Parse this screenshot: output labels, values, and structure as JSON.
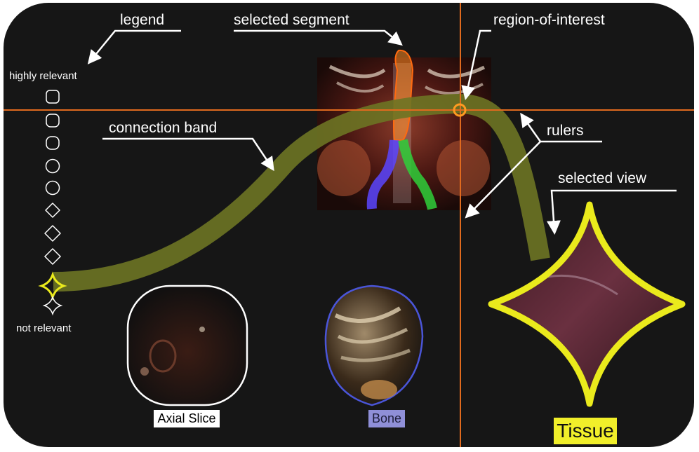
{
  "annotations": {
    "legend": "legend",
    "selected_segment": "selected segment",
    "region_of_interest": "region-of-interest",
    "connection_band": "connection band",
    "rulers": "rulers",
    "selected_view": "selected view"
  },
  "legend_scale": {
    "top_label": "highly relevant",
    "bottom_label": "not relevant",
    "glyph_count": 10,
    "highlighted_index": 8
  },
  "views": {
    "axial": "Axial Slice",
    "bone": "Bone",
    "tissue": "Tissue"
  },
  "colors": {
    "background": "#161616",
    "ruler": "#e06a1e",
    "band": "#6d7424",
    "highlight": "#eaea1c",
    "bone_outline": "#4a55d8",
    "vessel_left": "#5a45ff",
    "vessel_right": "#2fcf3a",
    "segment": "#ff7a1a"
  }
}
